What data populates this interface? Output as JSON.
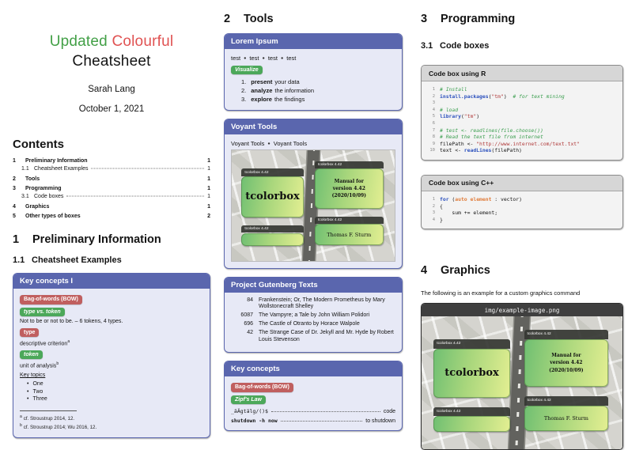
{
  "colors": {
    "accent": "#5a66ae",
    "badge_red": "#c05f5f",
    "badge_green": "#4ca85a",
    "title_green": "#43a047",
    "title_red": "#e05252"
  },
  "titleblock": {
    "word_green": "Updated",
    "word_red": "Colourful",
    "line2": "Cheatsheet",
    "author": "Sarah Lang",
    "date": "October 1, 2021"
  },
  "contents": {
    "heading": "Contents",
    "entries": [
      {
        "num": "1",
        "label": "Preliminary Information",
        "page": "1",
        "level": 1
      },
      {
        "num": "1.1",
        "label": "Cheatsheet Examples",
        "page": "1",
        "level": 2
      },
      {
        "num": "2",
        "label": "Tools",
        "page": "1",
        "level": 1
      },
      {
        "num": "3",
        "label": "Programming",
        "page": "1",
        "level": 1
      },
      {
        "num": "3.1",
        "label": "Code boxes",
        "page": "1",
        "level": 2
      },
      {
        "num": "4",
        "label": "Graphics",
        "page": "1",
        "level": 1
      },
      {
        "num": "5",
        "label": "Other types of boxes",
        "page": "2",
        "level": 1
      }
    ]
  },
  "sections": {
    "s1": {
      "num": "1",
      "title": "Preliminary Information"
    },
    "s1_1": {
      "num": "1.1",
      "title": "Cheatsheet Examples"
    },
    "s2": {
      "num": "2",
      "title": "Tools"
    },
    "s3": {
      "num": "3",
      "title": "Programming"
    },
    "s3_1": {
      "num": "3.1",
      "title": "Code boxes"
    },
    "s4": {
      "num": "4",
      "title": "Graphics"
    }
  },
  "key_concepts_1": {
    "title": "Key concepts I",
    "badge_bow": "Bag-of-words (BOW)",
    "badge_type_token": "type vs. token",
    "type_token_text": "Not to be or not to be. – 6 tokens, 4 types.",
    "badge_type": "type",
    "type_text": "descriptive criterion",
    "badge_token": "token",
    "token_text": "unit of analysis",
    "fn_a_mark": "a",
    "fn_b_mark": "b",
    "key_topics": "Key topics",
    "topics": [
      "One",
      "Two",
      "Three"
    ],
    "footnote_a": "cf. Stroustrup 2014, 12.",
    "footnote_b": "cf. Stroustrup 2014; Wu 2016, 12."
  },
  "lorem_box": {
    "title": "Lorem Ipsum",
    "test_items": [
      "test",
      "test",
      "test",
      "test"
    ],
    "badge_visualize": "Visualize",
    "steps": [
      {
        "bold": "present",
        "rest": "your data"
      },
      {
        "bold": "analyze",
        "rest": "the information"
      },
      {
        "bold": "explore",
        "rest": "the findings"
      }
    ]
  },
  "voyant_box": {
    "title": "Voyant Tools",
    "items": [
      "Voyant Tools",
      "Voyant Tools"
    ]
  },
  "gutenberg_box": {
    "title": "Project Gutenberg Texts",
    "rows": [
      {
        "id": "84",
        "title": "Frankenstein; Or, The Modern Prometheus by Mary Wollstonecraft Shelley"
      },
      {
        "id": "6087",
        "title": "The Vampyre; a Tale by John William Polidori"
      },
      {
        "id": "696",
        "title": "The Castle of Otranto by Horace Walpole"
      },
      {
        "id": "42",
        "title": "The Strange Case of Dr. Jekyll and Mr. Hyde by Robert Louis Stevenson"
      }
    ]
  },
  "key_concepts_2": {
    "title": "Key concepts",
    "badge_bow": "Bag-of-words (BOW)",
    "badge_zipf": "Zipf's Law",
    "desc_items": [
      {
        "term": "_äÄgtälg/()$",
        "desc": "code",
        "bold": false
      },
      {
        "term": "shutdown -h now",
        "desc": "to shutdown",
        "bold": true
      }
    ]
  },
  "code_r": {
    "title": "Code box using R",
    "lines": [
      [
        {
          "t": "# Install",
          "c": "com"
        }
      ],
      [
        {
          "t": "install.packages",
          "c": "kw"
        },
        {
          "t": "(",
          "c": ""
        },
        {
          "t": "\"tm\"",
          "c": "str"
        },
        {
          "t": ")  ",
          "c": ""
        },
        {
          "t": "# for text mining",
          "c": "com"
        }
      ],
      [],
      [
        {
          "t": "# load",
          "c": "com"
        }
      ],
      [
        {
          "t": "library",
          "c": "kw"
        },
        {
          "t": "(",
          "c": ""
        },
        {
          "t": "\"tm\"",
          "c": "str"
        },
        {
          "t": ")",
          "c": ""
        }
      ],
      [],
      [
        {
          "t": "# test <- readlines(file.choose())",
          "c": "com"
        }
      ],
      [
        {
          "t": "# Read the text file from internet",
          "c": "com"
        }
      ],
      [
        {
          "t": "filePath <- ",
          "c": ""
        },
        {
          "t": "\"http://www.internet.com/text.txt\"",
          "c": "str"
        }
      ],
      [
        {
          "t": "text <- ",
          "c": ""
        },
        {
          "t": "readLines",
          "c": "kw"
        },
        {
          "t": "(filePath)",
          "c": ""
        }
      ]
    ]
  },
  "code_cpp": {
    "title": "Code box using C++",
    "lines": [
      [
        {
          "t": "for",
          "c": "kw"
        },
        {
          "t": " (",
          "c": ""
        },
        {
          "t": "auto",
          "c": "kw2"
        },
        {
          "t": " ",
          "c": ""
        },
        {
          "t": "element",
          "c": "kw2"
        },
        {
          "t": " : vector)",
          "c": ""
        }
      ],
      [
        {
          "t": "{",
          "c": ""
        }
      ],
      [
        {
          "t": "    sum += element;",
          "c": ""
        }
      ],
      [
        {
          "t": "}",
          "c": ""
        }
      ]
    ]
  },
  "graphics": {
    "intro": "The following is an example for a custom graphics command",
    "filename": "img/example-image.png"
  },
  "example_image": {
    "strip": "tcolorbox 4.42",
    "box_main": "tcolorbox",
    "box_manual": "Manual for version 4.42 (2020/10/09)",
    "box_author": "Thomas F. Sturm"
  }
}
